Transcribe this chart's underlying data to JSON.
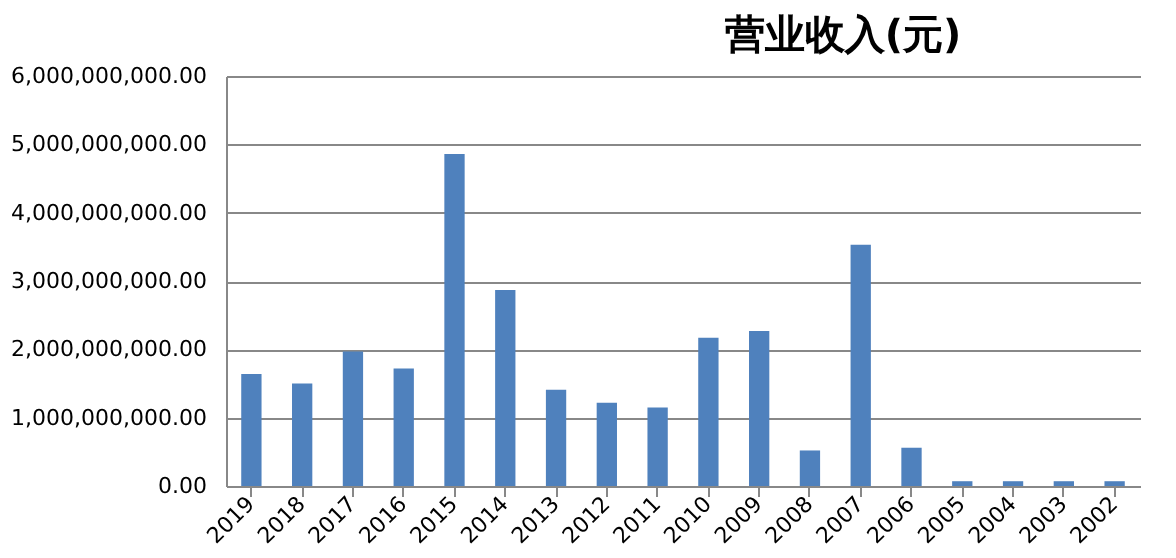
{
  "chart_data": {
    "type": "bar",
    "title": "营业收入(元)",
    "categories": [
      "2019",
      "2018",
      "2017",
      "2016",
      "2015",
      "2014",
      "2013",
      "2012",
      "2011",
      "2010",
      "2009",
      "2008",
      "2007",
      "2006",
      "2005",
      "2004",
      "2003",
      "2002"
    ],
    "values": [
      1640000000,
      1500000000,
      1970000000,
      1720000000,
      4860000000,
      2870000000,
      1410000000,
      1220000000,
      1150000000,
      2170000000,
      2270000000,
      520000000,
      3530000000,
      560000000,
      70000000,
      70000000,
      70000000,
      70000000
    ],
    "color": "#4f81bd",
    "ylim": [
      0,
      6000000000
    ],
    "yticks": [
      {
        "value": 0,
        "label": "0.00"
      },
      {
        "value": 1000000000,
        "label": "1,000,000,000.00"
      },
      {
        "value": 2000000000,
        "label": "2,000,000,000.00"
      },
      {
        "value": 3000000000,
        "label": "3,000,000,000.00"
      },
      {
        "value": 4000000000,
        "label": "4,000,000,000.00"
      },
      {
        "value": 5000000000,
        "label": "5,000,000,000.00"
      },
      {
        "value": 6000000000,
        "label": "6,000,000,000.00"
      }
    ],
    "grid": "y"
  }
}
